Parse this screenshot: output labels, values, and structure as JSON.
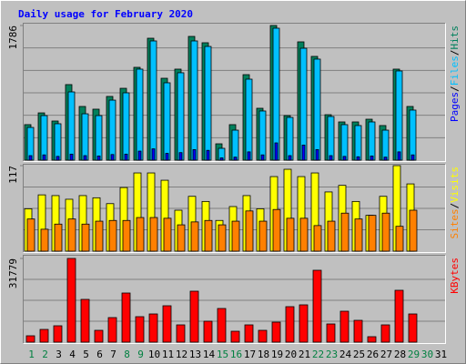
{
  "chart_data": [
    {
      "type": "bar",
      "title": "Daily usage for February 2020",
      "ylim": [
        0,
        1786
      ],
      "yticks": [
        1786
      ],
      "separator": "/",
      "series": [
        {
          "name": "Pages",
          "color": "#0000ff",
          "values": [
            60,
            70,
            50,
            80,
            60,
            55,
            75,
            80,
            120,
            150,
            90,
            100,
            140,
            130,
            30,
            40,
            110,
            70,
            229,
            60,
            200,
            140,
            60,
            50,
            45,
            55,
            40,
            110,
            70,
            null,
            null
          ]
        },
        {
          "name": "Files",
          "color": "#00c0ff",
          "values": [
            434,
            591,
            483,
            905,
            615,
            591,
            796,
            893,
            1207,
            1581,
            1026,
            1159,
            1581,
            1508,
            157,
            398,
            1074,
            652,
            1750,
            567,
            1484,
            1340,
            579,
            471,
            459,
            507,
            398,
            1183,
            664,
            null,
            null
          ]
        },
        {
          "name": "Hits",
          "color": "#00805c",
          "values": [
            471,
            627,
            519,
            1002,
            712,
            676,
            845,
            953,
            1231,
            1617,
            1086,
            1207,
            1641,
            1557,
            217,
            471,
            1134,
            688,
            1786,
            591,
            1569,
            1376,
            603,
            507,
            507,
            543,
            459,
            1207,
            712,
            null,
            null
          ]
        }
      ]
    },
    {
      "type": "bar",
      "ylim": [
        0,
        117
      ],
      "yticks": [
        117
      ],
      "separator": "/",
      "series": [
        {
          "name": "Sites",
          "color": "#ff8000",
          "values": [
            44,
            30,
            37,
            44,
            37,
            41,
            42,
            42,
            46,
            46,
            45,
            36,
            40,
            42,
            36,
            41,
            55,
            41,
            57,
            45,
            45,
            35,
            41,
            52,
            44,
            49,
            52,
            34,
            56,
            null,
            null
          ]
        },
        {
          "name": "Visits",
          "color": "#ffff00",
          "values": [
            58,
            77,
            76,
            71,
            76,
            73,
            65,
            87,
            107,
            107,
            97,
            56,
            75,
            68,
            42,
            61,
            76,
            58,
            102,
            112,
            102,
            107,
            81,
            90,
            68,
            49,
            75,
            117,
            92,
            null,
            null
          ]
        }
      ]
    },
    {
      "type": "bar",
      "ylim": [
        0,
        31779
      ],
      "yticks": [
        31779
      ],
      "categories": [
        "1",
        "2",
        "3",
        "4",
        "5",
        "6",
        "7",
        "8",
        "9",
        "10",
        "11",
        "12",
        "13",
        "14",
        "15",
        "16",
        "17",
        "18",
        "19",
        "20",
        "21",
        "22",
        "23",
        "24",
        "25",
        "26",
        "27",
        "28",
        "29",
        "30",
        "31"
      ],
      "category_colors": [
        "#008040",
        "#008040",
        "#000000",
        "#000000",
        "#000000",
        "#000000",
        "#000000",
        "#008040",
        "#008040",
        "#000000",
        "#000000",
        "#000000",
        "#000000",
        "#000000",
        "#008040",
        "#008040",
        "#000000",
        "#000000",
        "#000000",
        "#000000",
        "#000000",
        "#008040",
        "#008040",
        "#000000",
        "#000000",
        "#000000",
        "#000000",
        "#000000",
        "#008040",
        "#008040",
        "#000000"
      ],
      "series": [
        {
          "name": "KBytes",
          "color": "#ff0000",
          "values": [
            2418,
            4836,
            6218,
            31779,
            16235,
            4491,
            9326,
            18653,
            9672,
            10708,
            13817,
            6563,
            19344,
            7945,
            12781,
            4145,
            6563,
            4491,
            7599,
            13472,
            14163,
            27290,
            6909,
            11745,
            8290,
            2073,
            6563,
            19690,
            10708,
            null,
            null
          ]
        }
      ]
    }
  ]
}
